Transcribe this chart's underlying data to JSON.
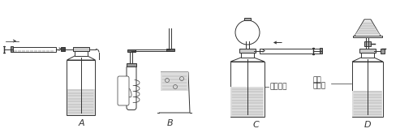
{
  "background_color": "#ffffff",
  "line_color": "#333333",
  "water_color": "#dddddd",
  "figsize": [
    5.09,
    1.64
  ],
  "dpi": 100,
  "label_A": "A",
  "label_B": "B",
  "label_C": "C",
  "label_D": "D",
  "text_liquid_rise": "液柱上升",
  "text_level1": "液面",
  "text_level2": "不下降"
}
